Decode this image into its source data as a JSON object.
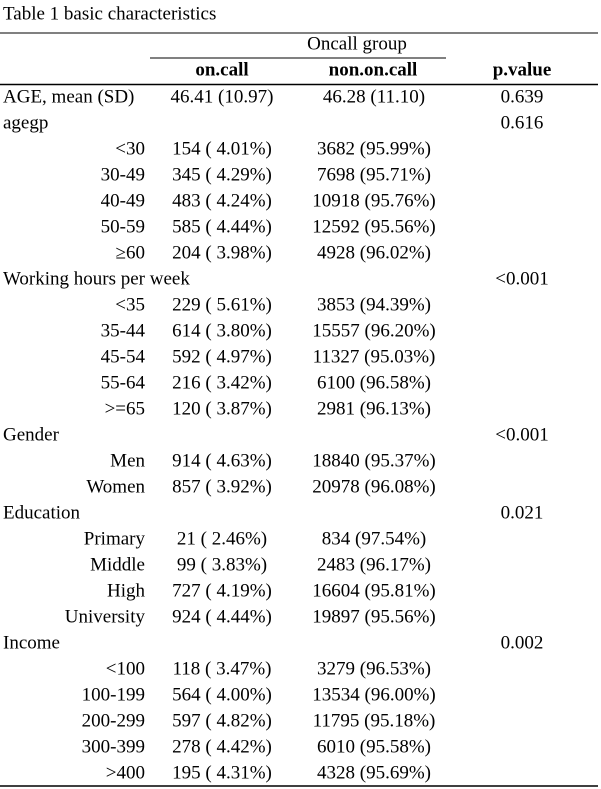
{
  "table": {
    "title": "Table 1 basic characteristics",
    "group_header": "Oncall group",
    "columns": [
      "on.call",
      "non.on.call",
      "p.value"
    ],
    "sections": [
      {
        "label": "AGE, mean (SD)",
        "on_call": "46.41 (10.97)",
        "non_on_call": "46.28 (11.10)",
        "p_value": "0.639"
      },
      {
        "label": "agegp",
        "p_value": "0.616",
        "rows": [
          {
            "label": "<30",
            "on_call": "154 ( 4.01%)",
            "non_on_call": "3682 (95.99%)"
          },
          {
            "label": "30-49",
            "on_call": "345 ( 4.29%)",
            "non_on_call": "7698 (95.71%)"
          },
          {
            "label": "40-49",
            "on_call": "483 ( 4.24%)",
            "non_on_call": "10918 (95.76%)"
          },
          {
            "label": "50-59",
            "on_call": "585 ( 4.44%)",
            "non_on_call": "12592 (95.56%)"
          },
          {
            "label": "≥60",
            "on_call": "204 ( 3.98%)",
            "non_on_call": "4928 (96.02%)"
          }
        ]
      },
      {
        "label": "Working hours per week",
        "p_value": "<0.001",
        "rows": [
          {
            "label": "<35",
            "on_call": "229 ( 5.61%)",
            "non_on_call": "3853 (94.39%)"
          },
          {
            "label": "35-44",
            "on_call": "614 ( 3.80%)",
            "non_on_call": "15557 (96.20%)"
          },
          {
            "label": "45-54",
            "on_call": "592 ( 4.97%)",
            "non_on_call": "11327 (95.03%)"
          },
          {
            "label": "55-64",
            "on_call": "216 ( 3.42%)",
            "non_on_call": "6100 (96.58%)"
          },
          {
            "label": ">=65",
            "on_call": "120 ( 3.87%)",
            "non_on_call": "2981 (96.13%)"
          }
        ]
      },
      {
        "label": "Gender",
        "p_value": "<0.001",
        "rows": [
          {
            "label": "Men",
            "on_call": "914 ( 4.63%)",
            "non_on_call": "18840 (95.37%)"
          },
          {
            "label": "Women",
            "on_call": "857 ( 3.92%)",
            "non_on_call": "20978 (96.08%)"
          }
        ]
      },
      {
        "label": "Education",
        "p_value": "0.021",
        "rows": [
          {
            "label": "Primary",
            "on_call": "21 ( 2.46%)",
            "non_on_call": "834 (97.54%)"
          },
          {
            "label": "Middle",
            "on_call": "99 ( 3.83%)",
            "non_on_call": "2483 (96.17%)"
          },
          {
            "label": "High",
            "on_call": "727 ( 4.19%)",
            "non_on_call": "16604 (95.81%)"
          },
          {
            "label": "University",
            "on_call": "924 ( 4.44%)",
            "non_on_call": "19897 (95.56%)"
          }
        ]
      },
      {
        "label": "Income",
        "p_value": "0.002",
        "rows": [
          {
            "label": "<100",
            "on_call": "118 ( 3.47%)",
            "non_on_call": "3279 (96.53%)"
          },
          {
            "label": "100-199",
            "on_call": "564 ( 4.00%)",
            "non_on_call": "13534 (96.00%)"
          },
          {
            "label": "200-299",
            "on_call": "597 ( 4.82%)",
            "non_on_call": "11795 (95.18%)"
          },
          {
            "label": "300-399",
            "on_call": "278 ( 4.42%)",
            "non_on_call": "6010 (95.58%)"
          },
          {
            "label": ">400",
            "on_call": "195 ( 4.31%)",
            "non_on_call": "4328 (95.69%)"
          }
        ]
      }
    ]
  }
}
